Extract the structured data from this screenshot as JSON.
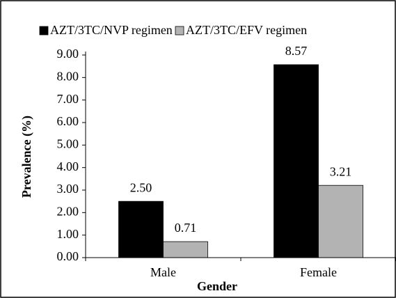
{
  "chart_data": {
    "type": "bar",
    "categories": [
      "Male",
      "Female"
    ],
    "series": [
      {
        "name": "AZT/3TC/NVP regimen",
        "color": "#000000",
        "values": [
          2.5,
          8.57
        ],
        "value_labels": [
          "2.50",
          "8.57"
        ]
      },
      {
        "name": "AZT/3TC/EFV regimen",
        "color": "#b3b3b3",
        "values": [
          0.71,
          3.21
        ],
        "value_labels": [
          "0.71",
          "3.21"
        ]
      }
    ],
    "xlabel": "Gender",
    "ylabel": "Prevalence (%)",
    "ylim": [
      0,
      9
    ],
    "yticks": [
      {
        "value": 0,
        "label": "0.00"
      },
      {
        "value": 1,
        "label": "1.00"
      },
      {
        "value": 2,
        "label": "2.00"
      },
      {
        "value": 3,
        "label": "3.00"
      },
      {
        "value": 4,
        "label": "4.00"
      },
      {
        "value": 5,
        "label": "5.00"
      },
      {
        "value": 6,
        "label": "6.00"
      },
      {
        "value": 7,
        "label": "7.00"
      },
      {
        "value": 8,
        "label": "8.00"
      },
      {
        "value": 9,
        "label": "9.00"
      }
    ],
    "legend": "top"
  }
}
